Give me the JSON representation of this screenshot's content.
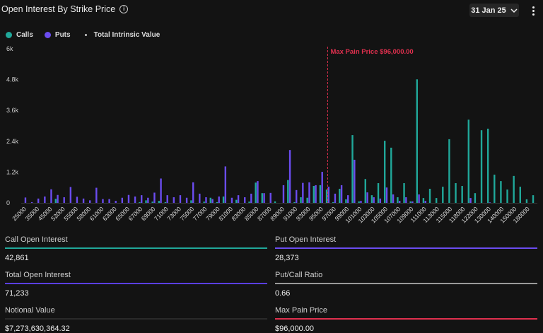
{
  "header": {
    "title": "Open Interest By Strike Price",
    "info_icon": "info-icon",
    "date": "31 Jan 25",
    "menu_icon": "kebab-icon"
  },
  "colors": {
    "calls": "#20a89a",
    "puts": "#6b4cf0",
    "max_pain": "#e0304e",
    "background": "#131313"
  },
  "chart_data": {
    "type": "bar",
    "legend": [
      {
        "name": "Calls",
        "color": "#20a89a"
      },
      {
        "name": "Puts",
        "color": "#6b4cf0"
      },
      {
        "name": "Total Intrinsic Value",
        "color": "#cccccc"
      }
    ],
    "legend_placement": "top-left",
    "ylim": [
      0,
      6000
    ],
    "yticks": [
      0,
      1200,
      2400,
      3600,
      4800,
      6000
    ],
    "ytick_labels": [
      "0",
      "1.2k",
      "2.4k",
      "3.6k",
      "4.8k",
      "6k"
    ],
    "grid": false,
    "categories": [
      "25000",
      null,
      "35000",
      null,
      "45000",
      null,
      "52000",
      null,
      "55000",
      null,
      "58000",
      null,
      "61000",
      null,
      "63000",
      null,
      "65000",
      null,
      "67000",
      null,
      "69000",
      null,
      "71000",
      null,
      "73000",
      null,
      "75000",
      null,
      "77000",
      null,
      "79000",
      null,
      "81000",
      null,
      "83000",
      null,
      "85000",
      null,
      "87000",
      null,
      "89000",
      null,
      "91000",
      null,
      "93000",
      null,
      "95000",
      null,
      "97000",
      null,
      "99000",
      null,
      "101000",
      null,
      "103000",
      null,
      "105000",
      null,
      "107000",
      null,
      "109000",
      null,
      "111000",
      null,
      "113000",
      null,
      "115000",
      null,
      "118000",
      null,
      "122000",
      null,
      "130000",
      null,
      "140000",
      null,
      "150000",
      null,
      "180000",
      null
    ],
    "series": [
      {
        "name": "Calls",
        "values": [
          0,
          0,
          0,
          0,
          0,
          160,
          0,
          0,
          0,
          0,
          0,
          0,
          0,
          0,
          0,
          0,
          0,
          0,
          30,
          100,
          50,
          80,
          30,
          0,
          0,
          0,
          100,
          0,
          50,
          200,
          30,
          250,
          0,
          120,
          0,
          50,
          790,
          380,
          0,
          60,
          0,
          890,
          30,
          220,
          200,
          660,
          690,
          520,
          30,
          550,
          140,
          2640,
          60,
          930,
          300,
          770,
          2420,
          2150,
          220,
          770,
          60,
          4810,
          190,
          550,
          190,
          630,
          2480,
          770,
          660,
          3240,
          380,
          2830,
          2890,
          1100,
          850,
          520,
          1050,
          630,
          140,
          300
        ]
      },
      {
        "name": "Puts",
        "values": [
          210,
          30,
          170,
          250,
          530,
          310,
          220,
          620,
          240,
          170,
          100,
          590,
          150,
          150,
          80,
          200,
          310,
          250,
          300,
          200,
          400,
          950,
          300,
          220,
          300,
          200,
          800,
          360,
          220,
          150,
          250,
          1420,
          200,
          300,
          220,
          360,
          850,
          380,
          390,
          0,
          690,
          2060,
          500,
          780,
          800,
          690,
          1210,
          630,
          360,
          690,
          300,
          1680,
          80,
          410,
          220,
          170,
          600,
          330,
          80,
          220,
          60,
          330,
          80,
          0,
          0,
          0,
          0,
          0,
          0,
          190,
          0,
          0,
          20,
          0,
          0,
          0,
          0,
          0,
          0,
          0
        ]
      }
    ],
    "annotation": {
      "label": "Max Pain Price $96,000.00",
      "value": 96000
    }
  },
  "stats": [
    {
      "label": "Call Open Interest",
      "value": "42,861",
      "color": "#20a89a"
    },
    {
      "label": "Put Open Interest",
      "value": "28,373",
      "color": "#6b4cf0"
    },
    {
      "label": "Total Open Interest",
      "value": "71,233",
      "color": "#5a3fe0"
    },
    {
      "label": "Put/Call Ratio",
      "value": "0.66",
      "color": "#9a9a9a"
    },
    {
      "label": "Notional Value",
      "value": "$7,273,630,364.32",
      "color": "#2a2a2a"
    },
    {
      "label": "Max Pain Price",
      "value": "$96,000.00",
      "color": "#e0304e"
    }
  ]
}
